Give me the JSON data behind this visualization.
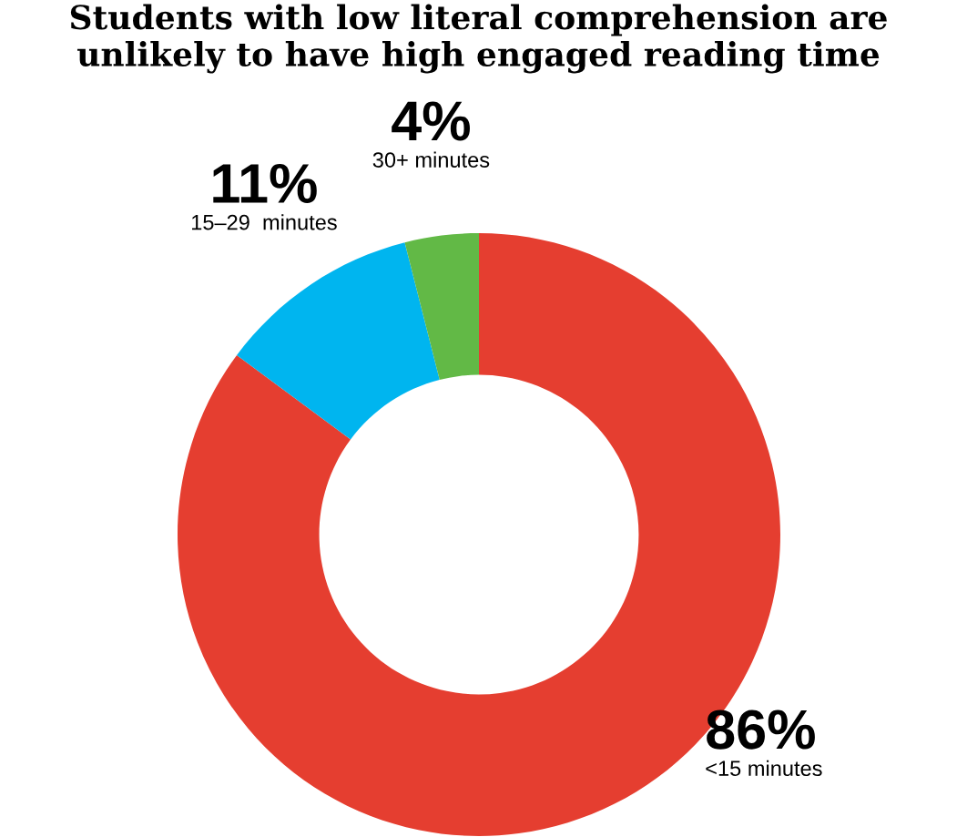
{
  "chart_data": {
    "type": "donut",
    "title": "Students with low literal comprehension are\nunlikely to have high engaged reading time",
    "categories": [
      "<15 minutes",
      "15–29  minutes",
      "30+ minutes"
    ],
    "values": [
      86,
      11,
      4
    ],
    "value_labels": [
      "86%",
      "11%",
      "4%"
    ],
    "colors": [
      "#e53e30",
      "#00b5ef",
      "#62b946"
    ]
  }
}
